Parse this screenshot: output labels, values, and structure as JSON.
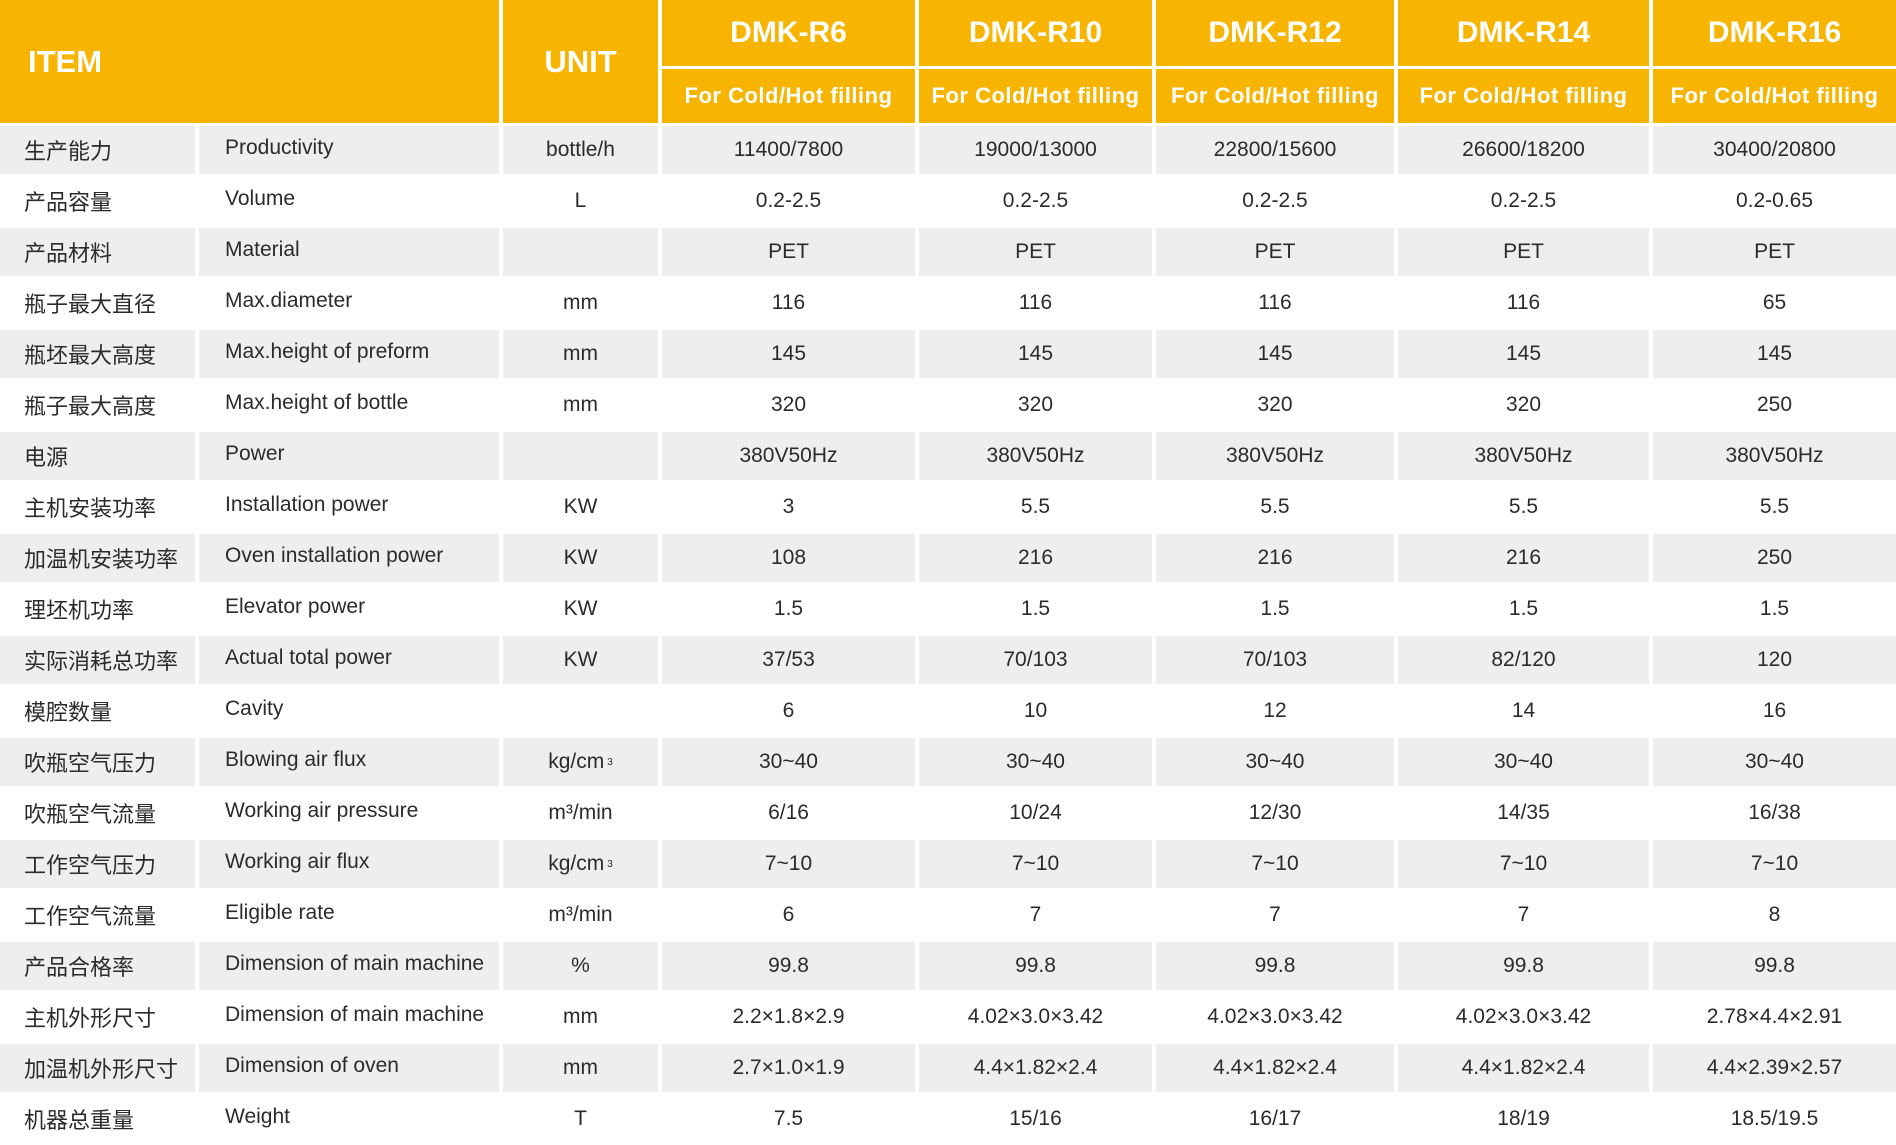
{
  "header": {
    "item_label": "ITEM",
    "unit_label": "UNIT",
    "models": [
      "DMK-R6",
      "DMK-R10",
      "DMK-R12",
      "DMK-R14",
      "DMK-R16"
    ],
    "subtitle": "For Cold/Hot filling"
  },
  "colors": {
    "header_bg": "#F7B400",
    "row_alt": "#EEEEEE"
  },
  "rows": [
    {
      "cn": "生产能力",
      "en": "Productivity",
      "unit": "bottle/h",
      "values": [
        "11400/7800",
        "19000/13000",
        "22800/15600",
        "26600/18200",
        "30400/20800"
      ]
    },
    {
      "cn": "产品容量",
      "en": "Volume",
      "unit": "L",
      "values": [
        "0.2-2.5",
        "0.2-2.5",
        "0.2-2.5",
        "0.2-2.5",
        "0.2-0.65"
      ]
    },
    {
      "cn": "产品材料",
      "en": "Material",
      "unit": "",
      "values": [
        "PET",
        "PET",
        "PET",
        "PET",
        "PET"
      ]
    },
    {
      "cn": "瓶子最大直径",
      "en": "Max.diameter",
      "unit": "mm",
      "values": [
        "116",
        "116",
        "116",
        "116",
        "65"
      ]
    },
    {
      "cn": "瓶坯最大高度",
      "en": "Max.height of preform",
      "unit": "mm",
      "values": [
        "145",
        "145",
        "145",
        "145",
        "145"
      ]
    },
    {
      "cn": "瓶子最大高度",
      "en": "Max.height of bottle",
      "unit": "mm",
      "values": [
        "320",
        "320",
        "320",
        "320",
        "250"
      ]
    },
    {
      "cn": "电源",
      "en": "Power",
      "unit": "",
      "values": [
        "380V50Hz",
        "380V50Hz",
        "380V50Hz",
        "380V50Hz",
        "380V50Hz"
      ]
    },
    {
      "cn": "主机安装功率",
      "en": "Installation power",
      "unit": "KW",
      "values": [
        "3",
        "5.5",
        "5.5",
        "5.5",
        "5.5"
      ]
    },
    {
      "cn": "加温机安装功率",
      "en": "Oven installation power",
      "unit": "KW",
      "values": [
        "108",
        "216",
        "216",
        "216",
        "250"
      ]
    },
    {
      "cn": "理坯机功率",
      "en": "Elevator power",
      "unit": "KW",
      "values": [
        "1.5",
        "1.5",
        "1.5",
        "1.5",
        "1.5"
      ]
    },
    {
      "cn": "实际消耗总功率",
      "en": "Actual total power",
      "unit": "KW",
      "values": [
        "37/53",
        "70/103",
        "70/103",
        "82/120",
        "120"
      ]
    },
    {
      "cn": "模腔数量",
      "en": "Cavity",
      "unit": "",
      "values": [
        "6",
        "10",
        "12",
        "14",
        "16"
      ]
    },
    {
      "cn": "吹瓶空气压力",
      "en": "Blowing air flux",
      "unit": "kg/cm³",
      "values": [
        "30~40",
        "30~40",
        "30~40",
        "30~40",
        "30~40"
      ]
    },
    {
      "cn": "吹瓶空气流量",
      "en": "Working air pressure",
      "unit": "m³/min",
      "values": [
        "6/16",
        "10/24",
        "12/30",
        "14/35",
        "16/38"
      ]
    },
    {
      "cn": "工作空气压力",
      "en": "Working air flux",
      "unit": "kg/cm³",
      "values": [
        "7~10",
        "7~10",
        "7~10",
        "7~10",
        "7~10"
      ]
    },
    {
      "cn": "工作空气流量",
      "en": "Eligible rate",
      "unit": "m³/min",
      "values": [
        "6",
        "7",
        "7",
        "7",
        "8"
      ]
    },
    {
      "cn": "产品合格率",
      "en": "Dimension of main machine",
      "unit": "%",
      "values": [
        "99.8",
        "99.8",
        "99.8",
        "99.8",
        "99.8"
      ]
    },
    {
      "cn": "主机外形尺寸",
      "en": "Dimension of main machine",
      "unit": "mm",
      "values": [
        "2.2×1.8×2.9",
        "4.02×3.0×3.42",
        "4.02×3.0×3.42",
        "4.02×3.0×3.42",
        "2.78×4.4×2.91"
      ]
    },
    {
      "cn": "加温机外形尺寸",
      "en": "Dimension of oven",
      "unit": "mm",
      "values": [
        "2.7×1.0×1.9",
        "4.4×1.82×2.4",
        "4.4×1.82×2.4",
        "4.4×1.82×2.4",
        "4.4×2.39×2.57"
      ]
    },
    {
      "cn": "机器总重量",
      "en": "Weight",
      "unit": "T",
      "values": [
        "7.5",
        "15/16",
        "16/17",
        "18/19",
        "18.5/19.5"
      ]
    }
  ]
}
